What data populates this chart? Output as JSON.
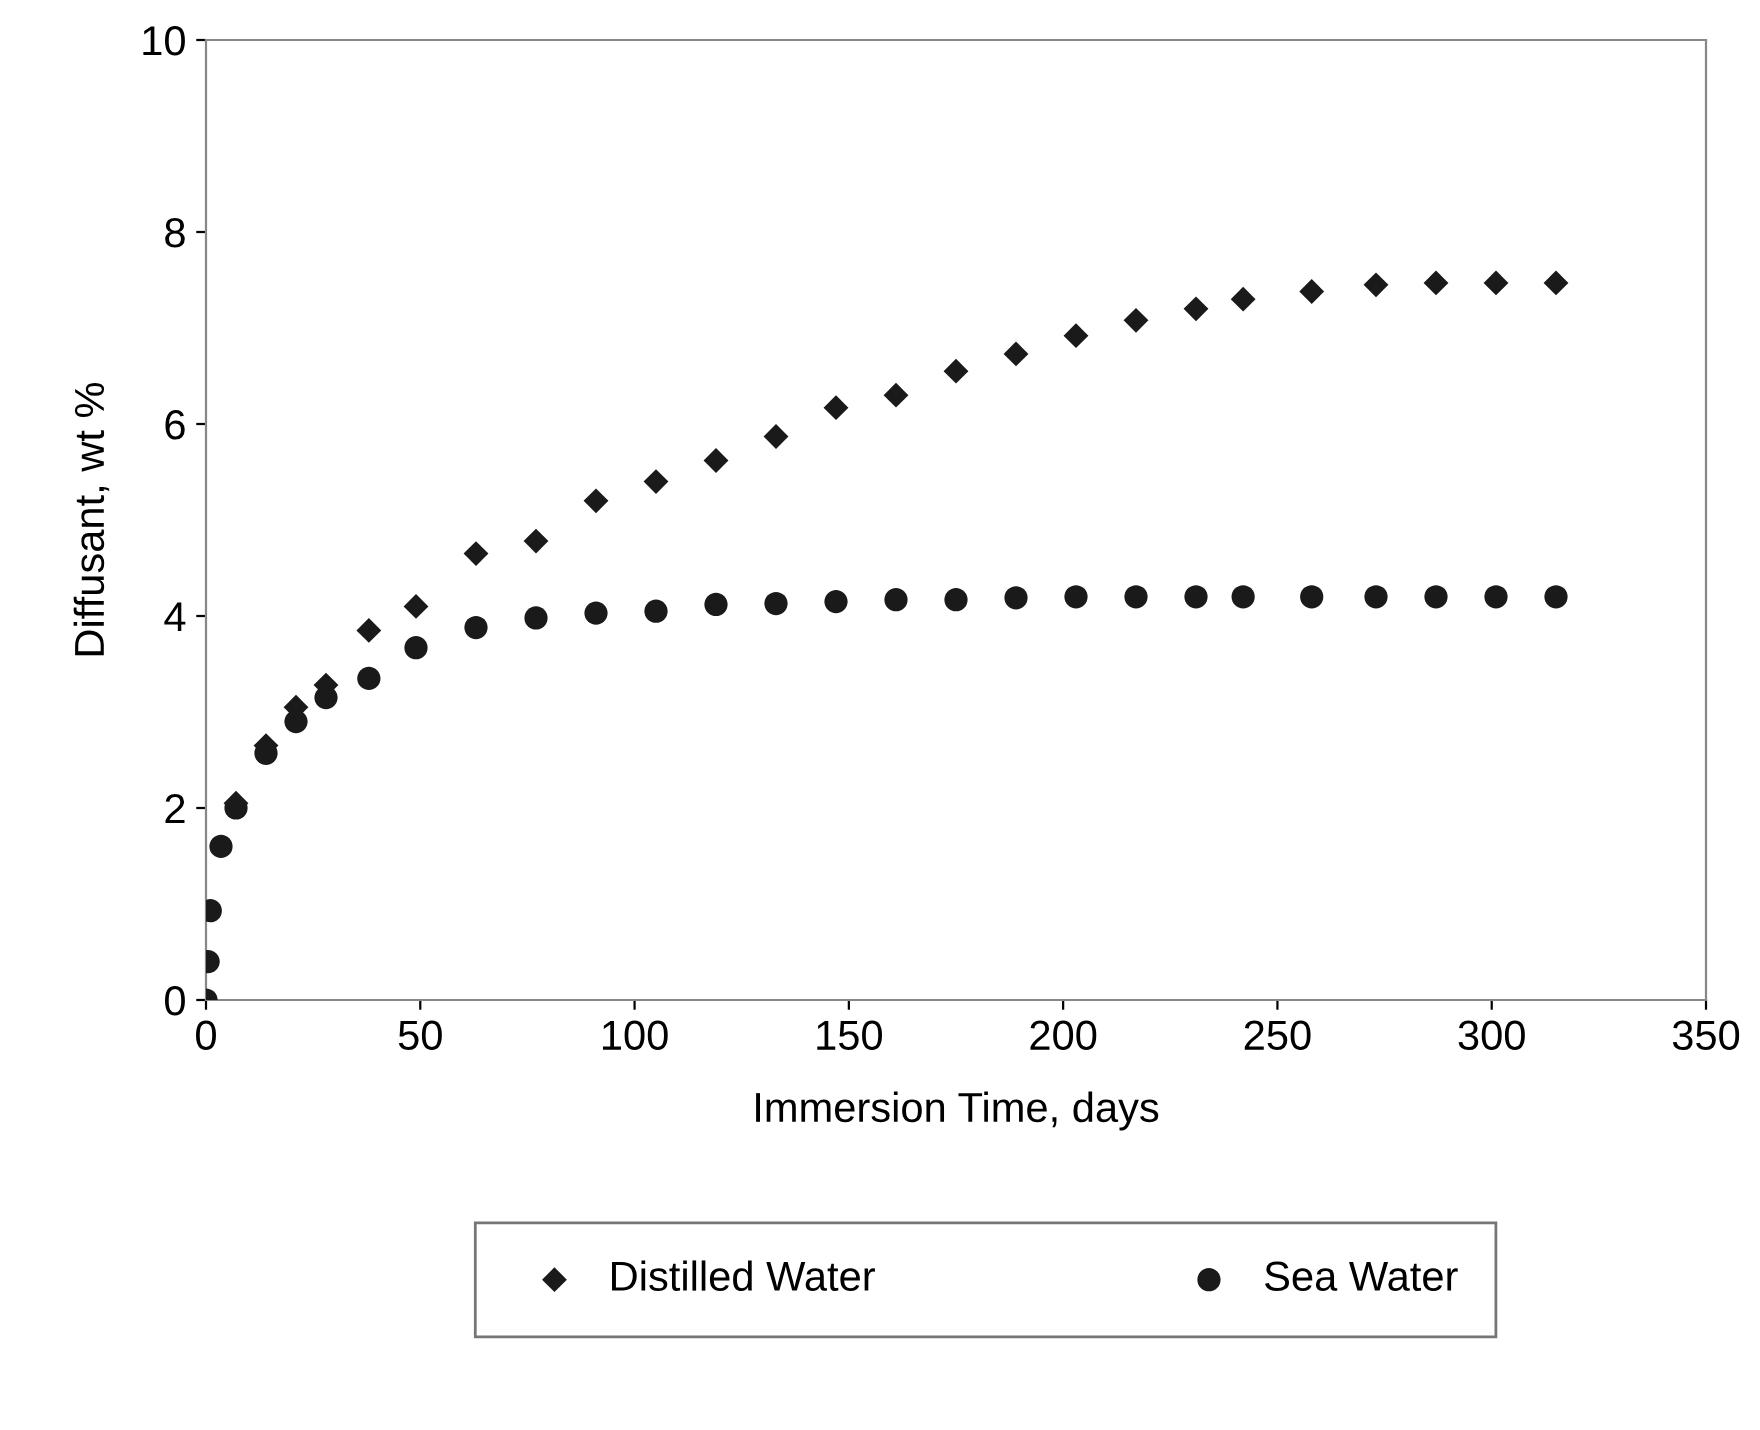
{
  "chart_data": {
    "type": "scatter",
    "xlabel": "Immersion Time, days",
    "ylabel": "Diffusant, wt %",
    "x": [
      0,
      0.5,
      1,
      3.5,
      7,
      14,
      21,
      28,
      38,
      49,
      63,
      77,
      91,
      105,
      119,
      133,
      147,
      161,
      175,
      189,
      203,
      217,
      231,
      242,
      258,
      273,
      287,
      301,
      315
    ],
    "series": [
      {
        "name": "Distilled Water",
        "color": "#1a1a1a",
        "marker": "diamond",
        "values": [
          null,
          null,
          null,
          null,
          2.05,
          2.65,
          3.05,
          3.28,
          3.85,
          4.1,
          4.65,
          4.78,
          5.2,
          5.4,
          5.62,
          5.87,
          6.17,
          6.3,
          6.55,
          6.73,
          6.92,
          7.08,
          7.2,
          7.3,
          7.38,
          7.45,
          7.47,
          7.47,
          7.47
        ]
      },
      {
        "name": "Sea Water",
        "color": "#1a1a1a",
        "marker": "circle",
        "values": [
          0,
          0.4,
          0.93,
          1.6,
          2.0,
          2.57,
          2.9,
          3.15,
          3.35,
          3.67,
          3.88,
          3.98,
          4.03,
          4.05,
          4.12,
          4.13,
          4.15,
          4.17,
          4.17,
          4.19,
          4.2,
          4.2,
          4.2,
          4.2,
          4.2,
          4.2,
          4.2,
          4.2,
          4.2
        ]
      }
    ],
    "xlim": [
      0,
      350
    ],
    "xticks": [
      0,
      50,
      100,
      150,
      200,
      250,
      300,
      350
    ],
    "ylim": [
      0,
      10
    ],
    "yticks": [
      0,
      2,
      4,
      6,
      8,
      10
    ],
    "grid": false,
    "legend": "bottom"
  }
}
